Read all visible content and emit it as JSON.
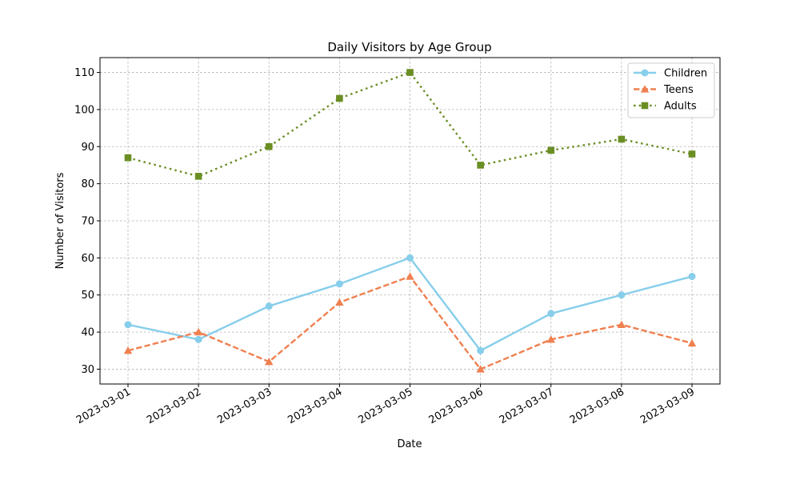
{
  "chart_data": {
    "type": "line",
    "title": "Daily Visitors by Age Group",
    "xlabel": "Date",
    "ylabel": "Number of Visitors",
    "x": [
      "2023-03-01",
      "2023-03-02",
      "2023-03-03",
      "2023-03-04",
      "2023-03-05",
      "2023-03-06",
      "2023-03-07",
      "2023-03-08",
      "2023-03-09"
    ],
    "ylim": [
      26,
      114
    ],
    "yticks": [
      30,
      40,
      50,
      60,
      70,
      80,
      90,
      100,
      110
    ],
    "grid": true,
    "legend_position": "top-right",
    "series": [
      {
        "name": "Children",
        "values": [
          42,
          38,
          47,
          53,
          60,
          35,
          45,
          50,
          55
        ],
        "color": "#87ceeb",
        "line_style": "solid",
        "marker": "circle"
      },
      {
        "name": "Teens",
        "values": [
          35,
          40,
          32,
          48,
          55,
          30,
          38,
          42,
          37
        ],
        "color": "#f08050",
        "line_style": "dashed",
        "marker": "triangle"
      },
      {
        "name": "Adults",
        "values": [
          87,
          82,
          90,
          103,
          110,
          85,
          89,
          92,
          88
        ],
        "color": "#6b8e23",
        "line_style": "dotted",
        "marker": "square"
      }
    ]
  }
}
